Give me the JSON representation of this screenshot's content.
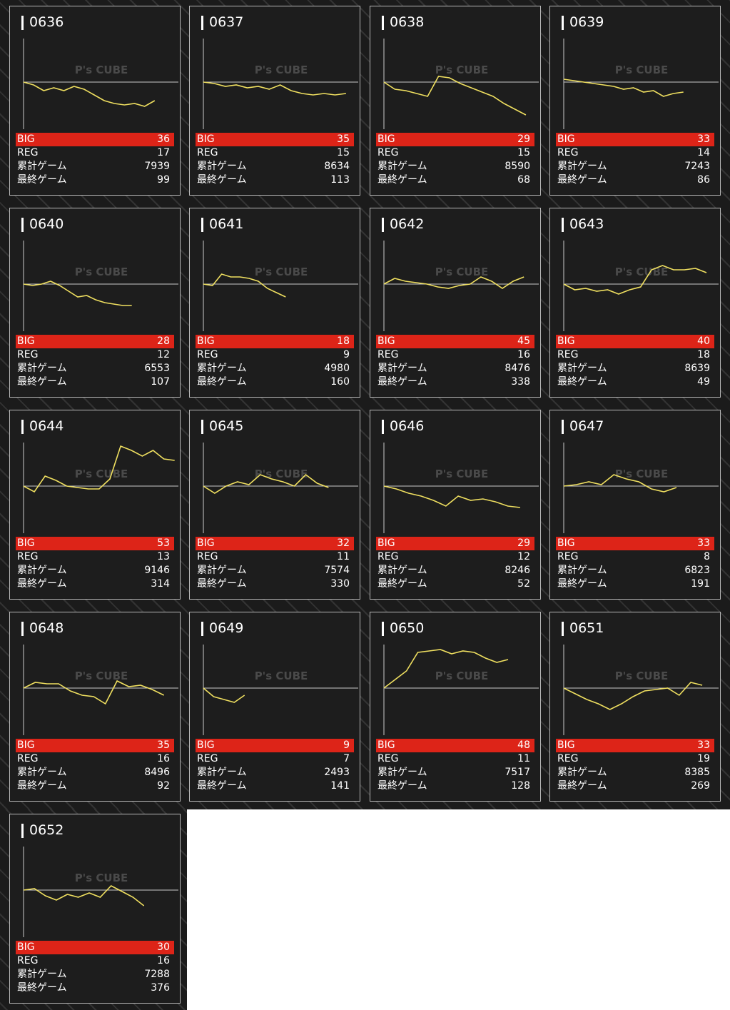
{
  "watermark": "P's CUBE",
  "labels": {
    "big": "BIG",
    "reg": "REG",
    "total": "累計ゲーム",
    "last": "最終ゲーム"
  },
  "xlim": [
    0,
    9200
  ],
  "ylim": [
    -66,
    61
  ],
  "machines": [
    {
      "id": "0636",
      "big": 36,
      "reg": 17,
      "total": 7939,
      "last": 99,
      "graph": [
        0,
        -4,
        -12,
        -8,
        -12,
        -6,
        -10,
        -18,
        -26,
        -30,
        -32,
        -30,
        -34,
        -26
      ]
    },
    {
      "id": "0637",
      "big": 35,
      "reg": 15,
      "total": 8634,
      "last": 113,
      "graph": [
        0,
        -2,
        -6,
        -4,
        -8,
        -6,
        -10,
        -4,
        -12,
        -16,
        -18,
        -16,
        -18,
        -16
      ]
    },
    {
      "id": "0638",
      "big": 29,
      "reg": 15,
      "total": 8590,
      "last": 68,
      "graph": [
        0,
        -10,
        -12,
        -16,
        -20,
        8,
        6,
        -2,
        -8,
        -14,
        -20,
        -30,
        -38,
        -46
      ]
    },
    {
      "id": "0639",
      "big": 33,
      "reg": 14,
      "total": 7243,
      "last": 86,
      "graph": [
        4,
        2,
        0,
        -2,
        -4,
        -6,
        -10,
        -8,
        -14,
        -12,
        -20,
        -16,
        -14
      ]
    },
    {
      "id": "0640",
      "big": 28,
      "reg": 12,
      "total": 6553,
      "last": 107,
      "graph": [
        0,
        -2,
        0,
        4,
        -2,
        -10,
        -18,
        -16,
        -22,
        -26,
        -28,
        -30,
        -30
      ]
    },
    {
      "id": "0641",
      "big": 18,
      "reg": 9,
      "total": 4980,
      "last": 160,
      "graph": [
        0,
        -2,
        14,
        10,
        10,
        8,
        4,
        -6,
        -12,
        -18
      ]
    },
    {
      "id": "0642",
      "big": 45,
      "reg": 16,
      "total": 8476,
      "last": 338,
      "graph": [
        0,
        8,
        4,
        2,
        0,
        -4,
        -6,
        -2,
        0,
        10,
        4,
        -6,
        4,
        10
      ]
    },
    {
      "id": "0643",
      "big": 40,
      "reg": 18,
      "total": 8639,
      "last": 49,
      "graph": [
        0,
        -8,
        -6,
        -10,
        -8,
        -14,
        -8,
        -4,
        20,
        26,
        20,
        20,
        22,
        16
      ]
    },
    {
      "id": "0644",
      "big": 53,
      "reg": 13,
      "total": 9146,
      "last": 314,
      "graph": [
        0,
        -8,
        14,
        8,
        0,
        -2,
        -4,
        -4,
        10,
        56,
        50,
        42,
        50,
        38,
        36
      ]
    },
    {
      "id": "0645",
      "big": 32,
      "reg": 11,
      "total": 7574,
      "last": 330,
      "graph": [
        0,
        -10,
        0,
        6,
        2,
        16,
        10,
        6,
        0,
        16,
        4,
        -2
      ]
    },
    {
      "id": "0646",
      "big": 29,
      "reg": 12,
      "total": 8246,
      "last": 52,
      "graph": [
        0,
        -4,
        -10,
        -14,
        -20,
        -28,
        -14,
        -20,
        -18,
        -22,
        -28,
        -30
      ]
    },
    {
      "id": "0647",
      "big": 33,
      "reg": 8,
      "total": 6823,
      "last": 191,
      "graph": [
        0,
        2,
        6,
        2,
        16,
        10,
        6,
        -4,
        -8,
        -2
      ]
    },
    {
      "id": "0648",
      "big": 35,
      "reg": 16,
      "total": 8496,
      "last": 92,
      "graph": [
        0,
        8,
        6,
        6,
        -4,
        -10,
        -12,
        -22,
        10,
        2,
        4,
        -2,
        -10
      ]
    },
    {
      "id": "0649",
      "big": 9,
      "reg": 7,
      "total": 2493,
      "last": 141,
      "graph": [
        0,
        -12,
        -16,
        -20,
        -10
      ]
    },
    {
      "id": "0650",
      "big": 48,
      "reg": 11,
      "total": 7517,
      "last": 128,
      "graph": [
        0,
        12,
        24,
        50,
        52,
        54,
        48,
        52,
        50,
        42,
        36,
        40
      ]
    },
    {
      "id": "0651",
      "big": 33,
      "reg": 19,
      "total": 8385,
      "last": 269,
      "graph": [
        0,
        -8,
        -16,
        -22,
        -30,
        -22,
        -12,
        -4,
        -2,
        0,
        -10,
        8,
        4
      ]
    },
    {
      "id": "0652",
      "big": 30,
      "reg": 16,
      "total": 7288,
      "last": 376,
      "graph": [
        0,
        2,
        -8,
        -14,
        -6,
        -10,
        -4,
        -10,
        6,
        -2,
        -10,
        -22
      ]
    }
  ]
}
